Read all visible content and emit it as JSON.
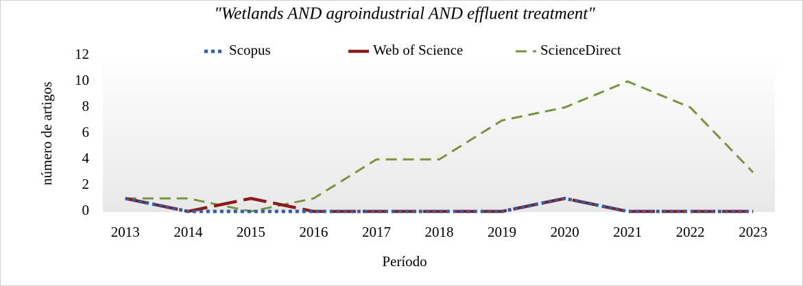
{
  "chart_data": {
    "type": "line",
    "title": "\"Wetlands AND agroindustrial AND effluent treatment\"",
    "x_label": "Período",
    "y_label": "número de artigos",
    "categories": [
      "2013",
      "2014",
      "2015",
      "2016",
      "2017",
      "2018",
      "2019",
      "2020",
      "2021",
      "2022",
      "2023"
    ],
    "series": [
      {
        "name": "Scopus",
        "color": "#2e5fa8",
        "values": [
          1,
          0,
          0,
          0,
          0,
          0,
          0,
          1,
          0,
          0,
          0
        ]
      },
      {
        "name": "Web of Science",
        "color": "#8b1a1a",
        "values": [
          1,
          0,
          1,
          0,
          0,
          0,
          0,
          1,
          0,
          0,
          0
        ]
      },
      {
        "name": "ScienceDirect",
        "color": "#77933c",
        "values": [
          1,
          1,
          0,
          1,
          4,
          4,
          7,
          8,
          10,
          8,
          3
        ]
      }
    ],
    "ylim": [
      0,
      12
    ],
    "yticks": [
      0,
      2,
      4,
      6,
      8,
      10,
      12
    ],
    "legend": "top",
    "grid": false
  }
}
